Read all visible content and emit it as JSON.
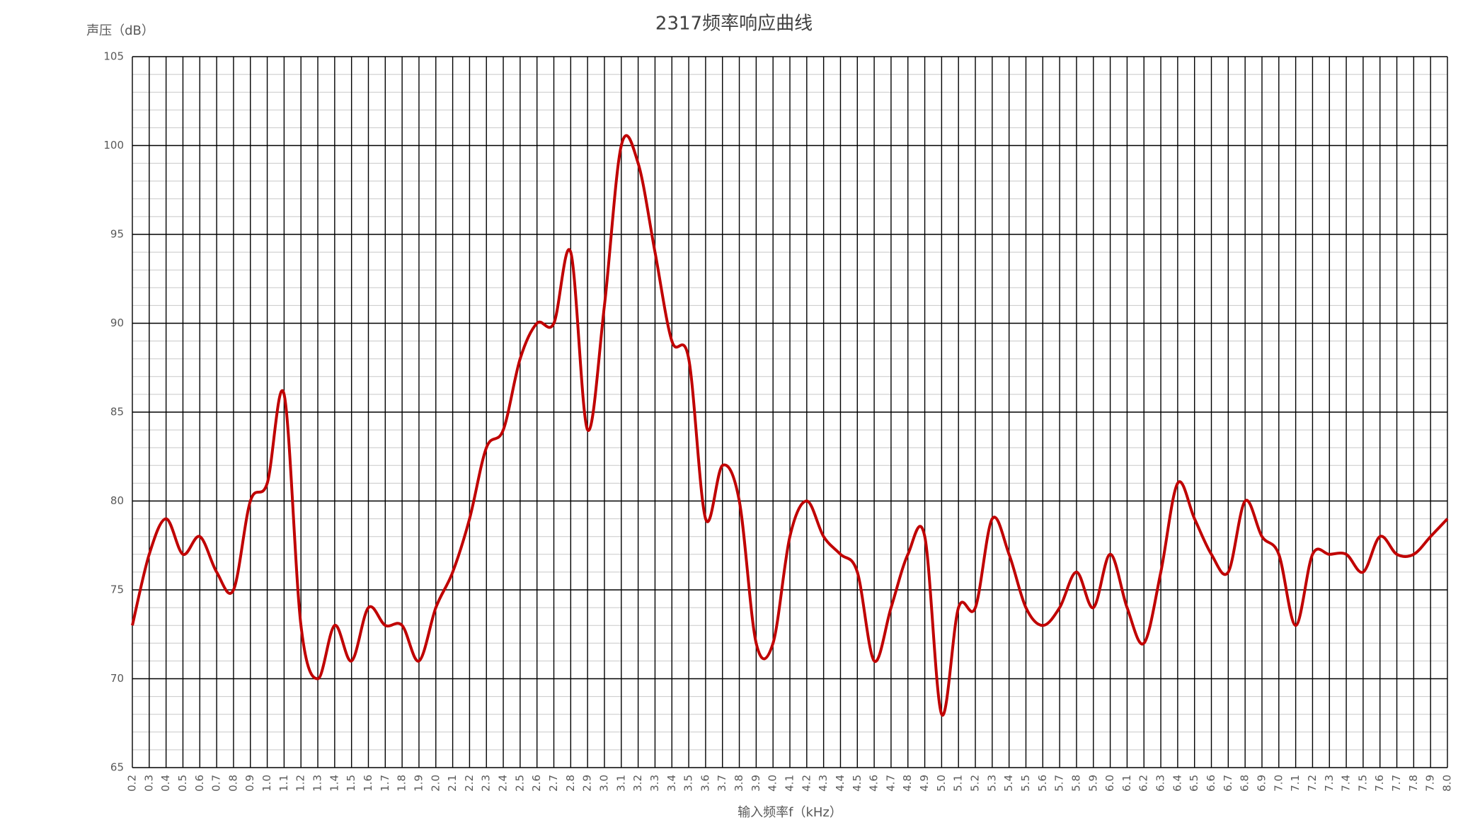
{
  "chart_data": {
    "type": "line",
    "title": "2317频率响应曲线",
    "y_label": "声压（dB）",
    "x_label": "输入频率f（kHz）",
    "categories": [
      "0.2",
      "0.3",
      "0.4",
      "0.5",
      "0.6",
      "0.7",
      "0.8",
      "0.9",
      "1.0",
      "1.1",
      "1.2",
      "1.3",
      "1.4",
      "1.5",
      "1.6",
      "1.7",
      "1.8",
      "1.9",
      "2.0",
      "2.1",
      "2.2",
      "2.3",
      "2.4",
      "2.5",
      "2.6",
      "2.7",
      "2.8",
      "2.9",
      "3.0",
      "3.1",
      "3.2",
      "3.3",
      "3.4",
      "3.5",
      "3.6",
      "3.7",
      "3.8",
      "3.9",
      "4.0",
      "4.1",
      "4.2",
      "4.3",
      "4.4",
      "4.5",
      "4.6",
      "4.7",
      "4.8",
      "4.9",
      "5.0",
      "5.1",
      "5.2",
      "5.3",
      "5.4",
      "5.5",
      "5.6",
      "5.7",
      "5.8",
      "5.9",
      "6.0",
      "6.1",
      "6.2",
      "6.3",
      "6.4",
      "6.5",
      "6.6",
      "6.7",
      "6.8",
      "6.9",
      "7.0",
      "7.1",
      "7.2",
      "7.3",
      "7.4",
      "7.5",
      "7.6",
      "7.7",
      "7.8",
      "7.9",
      "8.0"
    ],
    "series": [
      {
        "color": "#c00000",
        "values": [
          73,
          77,
          79,
          77,
          78,
          76,
          75,
          80,
          81,
          86,
          73,
          70,
          73,
          71,
          74,
          73,
          73,
          71,
          74,
          76,
          79,
          83,
          84,
          88,
          90,
          90,
          94,
          84,
          91,
          100,
          99,
          94,
          89,
          88,
          79,
          82,
          80,
          72,
          72,
          78,
          80,
          78,
          77,
          76,
          71,
          74,
          77,
          78,
          68,
          74,
          74,
          79,
          77,
          74,
          73,
          74,
          76,
          74,
          77,
          74,
          72,
          76,
          81,
          79,
          77,
          76,
          80,
          78,
          77,
          73,
          77,
          77,
          77,
          76,
          78,
          77,
          77,
          78,
          79
        ]
      }
    ],
    "ylim": [
      65,
      105
    ],
    "yticks": [
      65,
      70,
      75,
      80,
      85,
      90,
      95,
      100,
      105
    ],
    "minor_yticks": [
      66,
      67,
      68,
      69,
      71,
      72,
      73,
      74,
      76,
      77,
      78,
      79,
      81,
      82,
      83,
      84,
      86,
      87,
      88,
      89,
      91,
      92,
      93,
      94,
      96,
      97,
      98,
      99,
      101,
      102,
      103,
      104
    ],
    "grid": true
  }
}
